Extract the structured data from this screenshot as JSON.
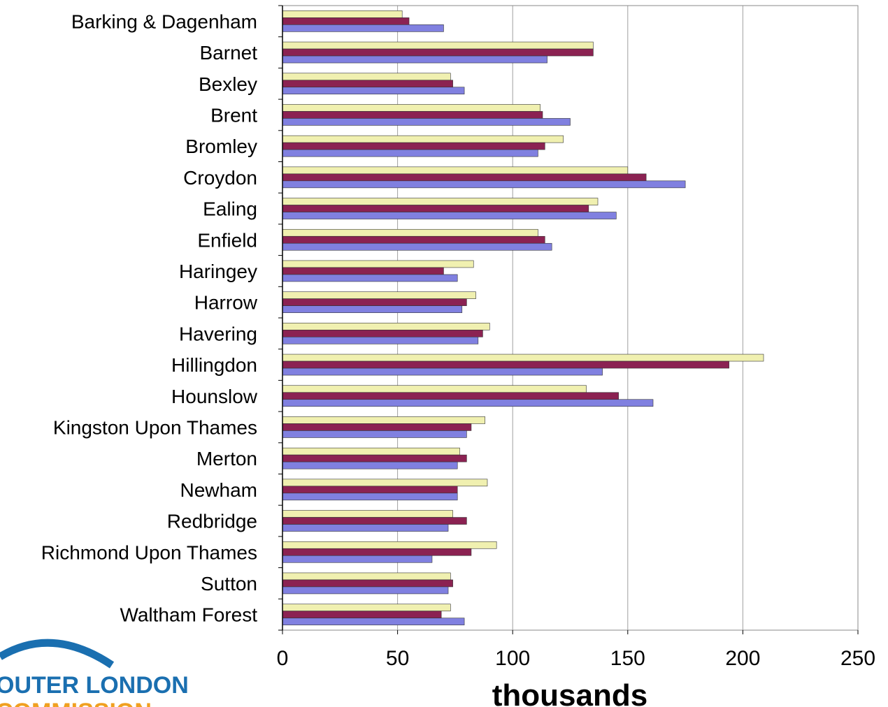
{
  "chart_data": {
    "type": "bar",
    "orientation": "horizontal",
    "xlabel": "thousands",
    "ylabel": "",
    "xlim": [
      0,
      250
    ],
    "xticks": [
      "0",
      "50",
      "100",
      "150",
      "200",
      "250"
    ],
    "grid": "vertical",
    "legend": "none",
    "categories": [
      "Barking & Dagenham",
      "Barnet",
      "Bexley",
      "Brent",
      "Bromley",
      "Croydon",
      "Ealing",
      "Enfield",
      "Haringey",
      "Harrow",
      "Havering",
      "Hillingdon",
      "Hounslow",
      "Kingston Upon Thames",
      "Merton",
      "Newham",
      "Redbridge",
      "Richmond  Upon Thames",
      "Sutton",
      "Waltham Forest"
    ],
    "series": [
      {
        "color": "#f0f0b0",
        "values": [
          52,
          135,
          73,
          112,
          122,
          150,
          137,
          111,
          83,
          84,
          90,
          209,
          132,
          88,
          77,
          89,
          74,
          93,
          73,
          73
        ]
      },
      {
        "color": "#8b2252",
        "values": [
          55,
          135,
          74,
          113,
          114,
          158,
          133,
          114,
          70,
          80,
          87,
          194,
          146,
          82,
          80,
          76,
          80,
          82,
          74,
          69
        ]
      },
      {
        "color": "#8080e0",
        "values": [
          70,
          115,
          79,
          125,
          111,
          175,
          145,
          117,
          76,
          78,
          85,
          139,
          161,
          80,
          76,
          76,
          72,
          65,
          72,
          79
        ]
      }
    ]
  },
  "logo": {
    "line1": "OUTER LONDON",
    "line2": "COMMISSION",
    "arc_color": "#1a6fb0",
    "text1_color": "#1a6fb0",
    "text2_color": "#f0a020"
  }
}
